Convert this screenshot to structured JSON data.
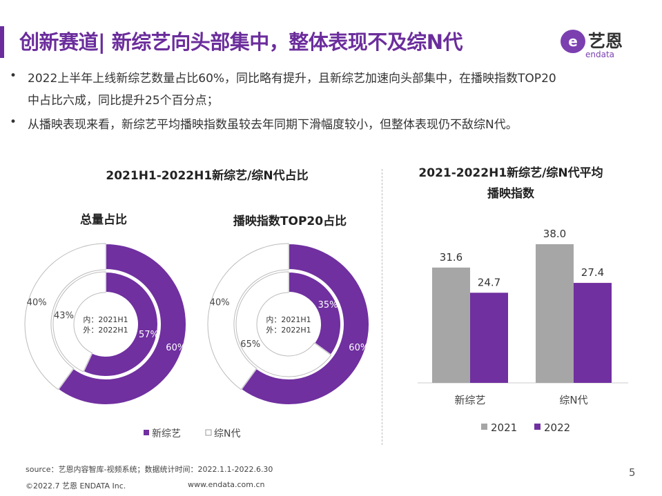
{
  "header": {
    "title": "创新赛道| 新综艺向头部集中，整体表现不及综N代",
    "logo_cn": "艺恩",
    "logo_en": "endata"
  },
  "bullets": [
    {
      "lines": [
        "2022上半年上线新综艺数量占比60%，同比略有提升，且新综艺加速向头部集中，在播映指数TOP20",
        "中占比六成，同比提升25个百分点；"
      ]
    },
    {
      "lines": [
        "从播映表现来看，新综艺平均播映指数虽较去年同期下滑幅度较小，但整体表现仍不敌综N代。"
      ]
    }
  ],
  "colors": {
    "purple": "#7030a0",
    "gray": "#a6a6a6",
    "title": "#6b2d9c"
  },
  "chart_data": [
    {
      "type": "pie",
      "title": "2021H1-2022H1新综艺/综N代占比",
      "subtitle": "总量占比",
      "center_label": [
        "内：2021H1",
        "外：2022H1"
      ],
      "series": [
        {
          "name": "内：2021H1",
          "labels": [
            "新综艺",
            "综N代"
          ],
          "values": [
            57,
            43
          ]
        },
        {
          "name": "外：2022H1",
          "labels": [
            "新综艺",
            "综N代"
          ],
          "values": [
            60,
            40
          ]
        }
      ]
    },
    {
      "type": "pie",
      "subtitle": "播映指数TOP20占比",
      "center_label": [
        "内：2021H1",
        "外：2022H1"
      ],
      "series": [
        {
          "name": "内：2021H1",
          "labels": [
            "新综艺",
            "综N代"
          ],
          "values": [
            35,
            65
          ]
        },
        {
          "name": "外：2022H1",
          "labels": [
            "新综艺",
            "综N代"
          ],
          "values": [
            60,
            40
          ]
        }
      ]
    },
    {
      "type": "bar",
      "title": [
        "2021-2022H1新综艺/综N代平均",
        "播映指数"
      ],
      "categories": [
        "新综艺",
        "综N代"
      ],
      "series": [
        {
          "name": "2021",
          "values": [
            31.6,
            38.0
          ],
          "color": "#a6a6a6"
        },
        {
          "name": "2022",
          "values": [
            24.7,
            27.4
          ],
          "color": "#7030a0"
        }
      ],
      "legend": "bottom",
      "grid": false
    }
  ],
  "pie_legend": [
    {
      "label": "新综艺",
      "color": "#7030a0"
    },
    {
      "label": "综N代",
      "color": "#ffffff"
    }
  ],
  "footer": {
    "source": "source：艺恩内容智库-视频系统；数据统计时间：2022.1.1-2022.6.30",
    "copyright": "©2022.7 艺恩 ENDATA Inc.",
    "url": "www.endata.com.cn",
    "page": "5"
  }
}
